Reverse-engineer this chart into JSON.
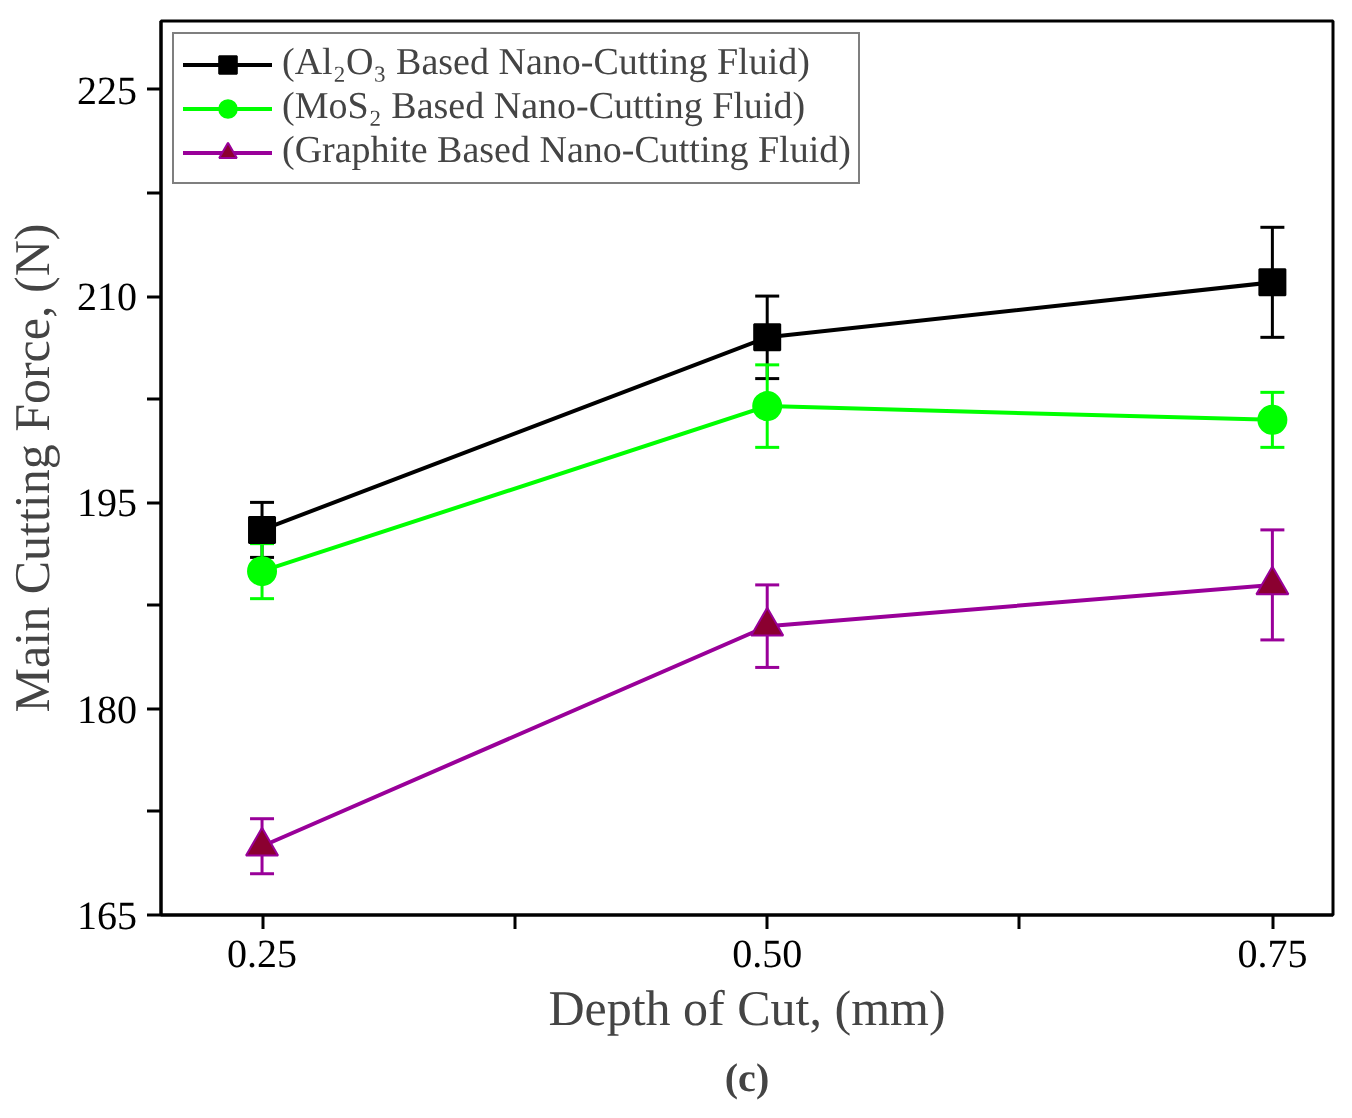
{
  "chart_data": {
    "type": "line",
    "xlabel": "Depth of Cut, (mm)",
    "ylabel": "Main Cutting Force, (N)",
    "annotations": [
      "(c)"
    ],
    "x": [
      0.25,
      0.5,
      0.75
    ],
    "series": [
      {
        "name": "(Al₂O₃ Based Nano-Cutting Fluid)",
        "color": "#000000",
        "marker": "square",
        "values": [
          193,
          207,
          211
        ],
        "errors": [
          2,
          3,
          4
        ]
      },
      {
        "name": "(MoS₂ Based Nano-Cutting Fluid)",
        "color": "#00ff00",
        "marker": "circle",
        "values": [
          190,
          202,
          201
        ],
        "errors": [
          2,
          3,
          2
        ]
      },
      {
        "name": "(Graphite Based Nano-Cutting Fluid)",
        "color": "#990099",
        "marker": "triangle",
        "values": [
          170,
          186,
          189
        ],
        "errors": [
          2,
          3,
          4
        ]
      }
    ],
    "xlim": [
      0.2,
      0.78
    ],
    "ylim": [
      165,
      230
    ],
    "xticks": [
      {
        "value": 0.25,
        "label": "0.25"
      },
      {
        "value": 0.375,
        "label": null
      },
      {
        "value": 0.5,
        "label": "0.50"
      },
      {
        "value": 0.625,
        "label": null
      },
      {
        "value": 0.75,
        "label": "0.75"
      }
    ],
    "yticks": [
      165,
      {
        "value": 172.5,
        "label": null
      },
      180,
      {
        "value": 187.5,
        "label": null
      },
      195,
      {
        "value": 202.5,
        "label": null
      },
      210,
      {
        "value": 217.5,
        "label": null
      },
      225
    ],
    "grid": false,
    "legend": "top left",
    "line_style": "solid"
  }
}
